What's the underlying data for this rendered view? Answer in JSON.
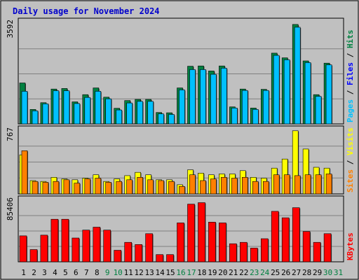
{
  "chart_data": {
    "type": "bar",
    "title": "Daily usage for November 2024",
    "days": [
      "1",
      "2",
      "3",
      "4",
      "5",
      "6",
      "7",
      "8",
      "9",
      "10",
      "11",
      "12",
      "13",
      "14",
      "15",
      "16",
      "17",
      "18",
      "19",
      "20",
      "21",
      "22",
      "23",
      "24",
      "25",
      "26",
      "27",
      "28",
      "29",
      "30",
      "31"
    ],
    "weekend_days": [
      "9",
      "10",
      "16",
      "17",
      "23",
      "24",
      "30",
      "31"
    ],
    "colors": {
      "hits": "#008040",
      "files": "#00c0ff",
      "pages": "#00c0ff",
      "visits": "#ffff00",
      "sites": "#ff8000",
      "kbytes": "#ff0000",
      "weekday_label": "#000000",
      "weekend_label": "#008040"
    },
    "panels": [
      {
        "id": "hits-files",
        "ymax_label": "3592",
        "ymax": 3592,
        "legend": [
          {
            "text": "Pages",
            "color": "#00c0ff"
          },
          {
            "text": " / ",
            "color": "#000000"
          },
          {
            "text": "Files",
            "color": "#0000ff"
          },
          {
            "text": " / ",
            "color": "#000000"
          },
          {
            "text": "Hits",
            "color": "#008040"
          }
        ],
        "series": [
          {
            "name": "Hits",
            "color": "#008040",
            "values": [
              1470,
              520,
              760,
              1250,
              1270,
              790,
              1050,
              1290,
              960,
              560,
              840,
              880,
              880,
              410,
              400,
              1290,
              2070,
              2080,
              1900,
              2080,
              610,
              1250,
              570,
              1240,
              2540,
              2370,
              3570,
              2260,
              1050,
              2180
            ]
          },
          {
            "name": "Files",
            "color": "#00c0ff",
            "values": [
              1170,
              470,
              720,
              1190,
              1190,
              730,
              950,
              1170,
              900,
              500,
              750,
              810,
              810,
              360,
              340,
              1220,
              1950,
              1950,
              1780,
              2000,
              570,
              1200,
              520,
              1200,
              2460,
              2300,
              3470,
              2200,
              990,
              2120
            ]
          }
        ]
      },
      {
        "id": "visits-sites",
        "ymax_label": "767",
        "ymax": 767,
        "legend": [
          {
            "text": "Sites",
            "color": "#ff8000"
          },
          {
            "text": " / ",
            "color": "#000000"
          },
          {
            "text": "Visits",
            "color": "#ffff00"
          }
        ],
        "series": [
          {
            "name": "Visits",
            "color": "#ffff00",
            "values": [
              470,
              160,
              150,
              200,
              180,
              170,
              190,
              230,
              150,
              180,
              220,
              260,
              230,
              170,
              170,
              110,
              290,
              250,
              230,
              240,
              240,
              280,
              200,
              190,
              310,
              420,
              760,
              540,
              320,
              310
            ]
          },
          {
            "name": "Sites",
            "color": "#ff8000",
            "values": [
              520,
              150,
              140,
              150,
              170,
              130,
              180,
              190,
              140,
              150,
              170,
              200,
              170,
              160,
              150,
              90,
              230,
              160,
              180,
              200,
              190,
              200,
              150,
              150,
              230,
              230,
              220,
              230,
              230,
              240
            ]
          }
        ]
      },
      {
        "id": "kbytes",
        "ymax_label": "85406",
        "ymax": 85406,
        "legend": [
          {
            "text": "KBytes",
            "color": "#ff0000"
          }
        ],
        "series": [
          {
            "name": "KBytes",
            "color": "#ff0000",
            "values": [
              36000,
              17000,
              37000,
              59000,
              59000,
              33000,
              44000,
              48000,
              44000,
              16000,
              27000,
              24000,
              39000,
              10000,
              10000,
              54000,
              80000,
              82000,
              55000,
              54000,
              25000,
              27000,
              19000,
              32000,
              70000,
              61000,
              75000,
              42000,
              27000,
              39000
            ]
          }
        ]
      }
    ]
  }
}
